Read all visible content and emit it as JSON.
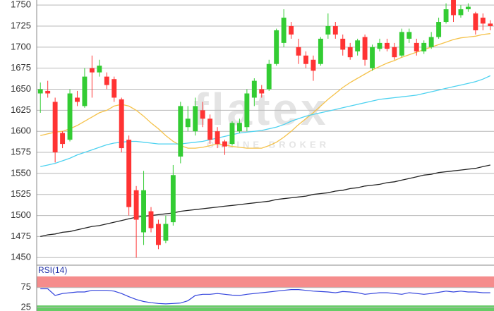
{
  "chart_data": [
    {
      "type": "candlestick",
      "watermark": {
        "title": "flatex",
        "subtitle": "ONLINE BROKER"
      },
      "open": [
        1645,
        1648,
        1635,
        1598,
        1590,
        1640,
        1630,
        1675,
        1670,
        1665,
        1662,
        1638,
        1590,
        1530,
        1480,
        1505,
        1490,
        1470,
        1492,
        1570,
        1605,
        1600,
        1625,
        1615,
        1600,
        1588,
        1585,
        1600,
        1605,
        1640,
        1650,
        1650,
        1680,
        1705,
        1725,
        1700,
        1690,
        1685,
        1680,
        1715,
        1725,
        1710,
        1700,
        1695,
        1712,
        1675,
        1698,
        1705,
        1700,
        1690,
        1710,
        1705,
        1695,
        1700,
        1712,
        1730,
        1760,
        1738,
        1745,
        1740,
        1735,
        1728
      ],
      "high": [
        1658,
        1660,
        1640,
        1600,
        1650,
        1648,
        1675,
        1690,
        1685,
        1670,
        1665,
        1640,
        1595,
        1535,
        1553,
        1510,
        1495,
        1500,
        1560,
        1635,
        1630,
        1640,
        1635,
        1620,
        1605,
        1590,
        1612,
        1615,
        1650,
        1663,
        1655,
        1685,
        1722,
        1745,
        1730,
        1710,
        1695,
        1690,
        1712,
        1740,
        1730,
        1715,
        1705,
        1710,
        1715,
        1703,
        1710,
        1710,
        1705,
        1722,
        1722,
        1710,
        1708,
        1718,
        1735,
        1752,
        1762,
        1750,
        1752,
        1742,
        1740,
        1732
      ],
      "low": [
        1622,
        1640,
        1563,
        1580,
        1588,
        1630,
        1628,
        1640,
        1665,
        1650,
        1635,
        1575,
        1500,
        1450,
        1465,
        1480,
        1460,
        1467,
        1488,
        1562,
        1600,
        1595,
        1605,
        1585,
        1580,
        1572,
        1583,
        1598,
        1600,
        1630,
        1640,
        1648,
        1678,
        1700,
        1710,
        1680,
        1675,
        1660,
        1678,
        1710,
        1710,
        1690,
        1685,
        1690,
        1678,
        1672,
        1695,
        1695,
        1685,
        1688,
        1705,
        1690,
        1692,
        1698,
        1710,
        1728,
        1730,
        1735,
        1742,
        1715,
        1720,
        1720
      ],
      "close": [
        1650,
        1645,
        1575,
        1585,
        1645,
        1635,
        1665,
        1670,
        1678,
        1655,
        1640,
        1580,
        1510,
        1495,
        1530,
        1485,
        1465,
        1490,
        1548,
        1630,
        1615,
        1630,
        1615,
        1590,
        1585,
        1582,
        1610,
        1610,
        1645,
        1660,
        1645,
        1680,
        1720,
        1735,
        1715,
        1690,
        1680,
        1672,
        1710,
        1725,
        1715,
        1697,
        1688,
        1708,
        1685,
        1700,
        1705,
        1698,
        1688,
        1718,
        1718,
        1695,
        1705,
        1712,
        1730,
        1745,
        1738,
        1745,
        1748,
        1720,
        1728,
        1725
      ],
      "up_color": "#33cc33",
      "down_color": "#ff3333",
      "moving_averages": [
        {
          "color": "#f5c24a",
          "values": [
            1595,
            1597,
            1599,
            1600,
            1603,
            1607,
            1612,
            1617,
            1622,
            1625,
            1630,
            1632,
            1630,
            1625,
            1618,
            1610,
            1603,
            1595,
            1588,
            1583,
            1580,
            1580,
            1581,
            1583,
            1585,
            1584,
            1582,
            1581,
            1580,
            1580,
            1580,
            1583,
            1587,
            1593,
            1600,
            1608,
            1615,
            1622,
            1630,
            1638,
            1645,
            1652,
            1658,
            1663,
            1668,
            1673,
            1677,
            1681,
            1684,
            1688,
            1691,
            1694,
            1697,
            1700,
            1703,
            1706,
            1709,
            1711,
            1712,
            1713,
            1715,
            1716
          ]
        },
        {
          "color": "#4dd2f0",
          "values": [
            1558,
            1560,
            1562,
            1565,
            1568,
            1572,
            1575,
            1578,
            1581,
            1584,
            1586,
            1587,
            1588,
            1588,
            1587,
            1586,
            1585,
            1585,
            1585,
            1585,
            1586,
            1587,
            1588,
            1590,
            1592,
            1594,
            1596,
            1598,
            1599,
            1600,
            1601,
            1603,
            1605,
            1608,
            1612,
            1615,
            1618,
            1620,
            1622,
            1624,
            1626,
            1628,
            1630,
            1632,
            1634,
            1636,
            1638,
            1639,
            1640,
            1641,
            1642,
            1643,
            1645,
            1647,
            1649,
            1651,
            1653,
            1655,
            1657,
            1659,
            1662,
            1666
          ]
        },
        {
          "color": "#222222",
          "values": [
            1475,
            1477,
            1478,
            1480,
            1481,
            1483,
            1485,
            1487,
            1488,
            1490,
            1492,
            1494,
            1496,
            1498,
            1499,
            1500,
            1501,
            1502,
            1503,
            1505,
            1506,
            1507,
            1508,
            1509,
            1510,
            1511,
            1512,
            1513,
            1514,
            1515,
            1516,
            1517,
            1519,
            1520,
            1521,
            1522,
            1523,
            1525,
            1526,
            1527,
            1529,
            1530,
            1532,
            1533,
            1535,
            1536,
            1537,
            1539,
            1540,
            1542,
            1544,
            1546,
            1548,
            1549,
            1551,
            1552,
            1553,
            1554,
            1555,
            1556,
            1558,
            1560
          ]
        }
      ],
      "ylim": [
        1441,
        1756
      ],
      "yticks": [
        1450,
        1475,
        1500,
        1525,
        1550,
        1575,
        1600,
        1625,
        1650,
        1675,
        1700,
        1725,
        1750
      ],
      "grid": true
    },
    {
      "type": "line",
      "title": "RSI(14)",
      "color": "#3344dd",
      "values": [
        72,
        72,
        55,
        60,
        62,
        64,
        64,
        68,
        68,
        68,
        66,
        60,
        52,
        45,
        40,
        37,
        35,
        34,
        35,
        36,
        42,
        55,
        58,
        58,
        60,
        58,
        56,
        55,
        58,
        60,
        62,
        64,
        66,
        68,
        70,
        70,
        68,
        66,
        65,
        64,
        62,
        65,
        64,
        62,
        58,
        60,
        62,
        62,
        60,
        58,
        62,
        60,
        58,
        60,
        63,
        66,
        64,
        66,
        64,
        64,
        62,
        62
      ],
      "bands": [
        {
          "from": 75,
          "to": 103,
          "color": "#f58c8c"
        },
        {
          "from": 16,
          "to": 30,
          "color": "#66cc66"
        }
      ],
      "ylim": [
        16,
        103
      ],
      "yticks": [
        25,
        75
      ],
      "grid": true
    }
  ]
}
